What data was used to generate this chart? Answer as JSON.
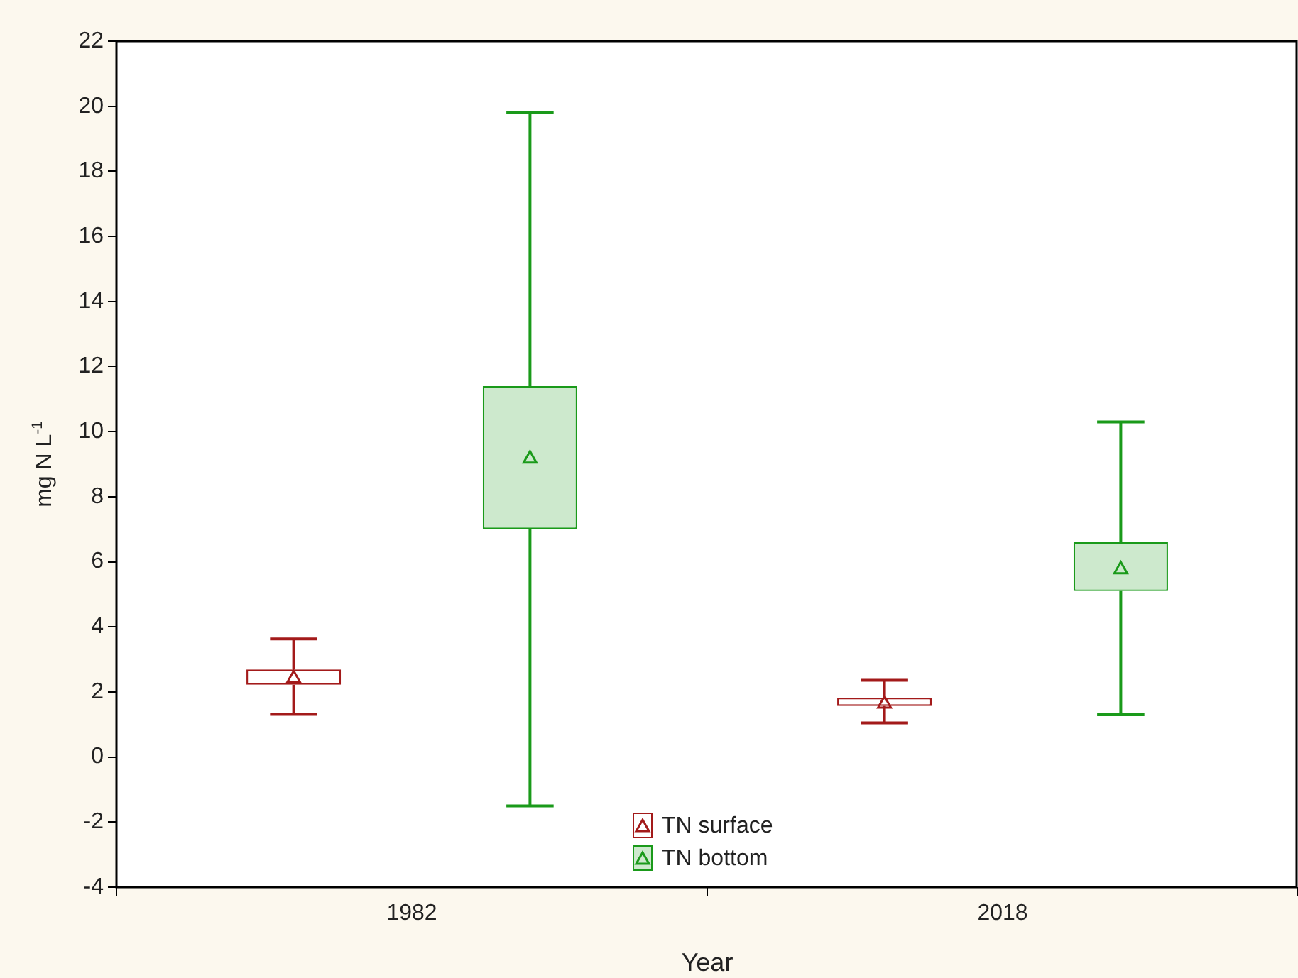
{
  "chart_data": {
    "type": "box",
    "xlabel": "Year",
    "ylabel": "mg N L$^{-1}$",
    "categories": [
      "1982",
      "2018"
    ],
    "series": [
      {
        "name": "TN surface",
        "color": "#a31a1a",
        "boxes": [
          {
            "low": 1.31,
            "q1": 2.22,
            "median": null,
            "q3": 2.69,
            "high": 3.63,
            "mean": 2.45
          },
          {
            "low": 1.05,
            "q1": 1.57,
            "median": null,
            "q3": 1.82,
            "high": 2.36,
            "mean": 1.67
          }
        ]
      },
      {
        "name": "TN bottom",
        "color": "#1a9a1a",
        "boxes": [
          {
            "low": -1.5,
            "q1": 7.0,
            "median": null,
            "q3": 11.4,
            "high": 19.8,
            "mean": 9.2
          },
          {
            "low": 1.3,
            "q1": 5.1,
            "median": null,
            "q3": 6.6,
            "high": 10.3,
            "mean": 5.8
          }
        ]
      }
    ],
    "ylim": [
      -4,
      22
    ],
    "yticks": [
      -4,
      -2,
      0,
      2,
      4,
      6,
      8,
      10,
      12,
      14,
      16,
      18,
      20,
      22
    ],
    "grid": false,
    "legend": "bottom",
    "marker": "triangle"
  }
}
